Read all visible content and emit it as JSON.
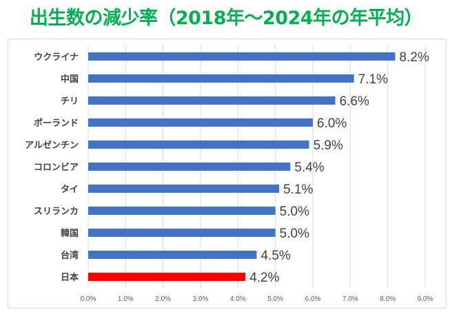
{
  "colors": {
    "title": "#00b050",
    "bar_default": "#4472c4",
    "bar_highlight": "#ff0000",
    "gridline": "#d9d9d9",
    "axis_text": "#595959"
  },
  "chart_data": {
    "type": "bar",
    "orientation": "horizontal",
    "title": "出生数の減少率（2018年～2024年の年平均）",
    "categories": [
      "ウクライナ",
      "中国",
      "チリ",
      "ポーランド",
      "アルゼンチン",
      "コロンビア",
      "タイ",
      "スリランカ",
      "韓国",
      "台湾",
      "日本"
    ],
    "values": [
      8.2,
      7.1,
      6.6,
      6.0,
      5.9,
      5.4,
      5.1,
      5.0,
      5.0,
      4.5,
      4.2
    ],
    "data_labels": [
      "8.2%",
      "7.1%",
      "6.6%",
      "6.0%",
      "5.9%",
      "5.4%",
      "5.1%",
      "5.0%",
      "5.0%",
      "4.5%",
      "4.2%"
    ],
    "highlight_category": "日本",
    "xlim": [
      0,
      9
    ],
    "x_ticks": [
      0,
      1,
      2,
      3,
      4,
      5,
      6,
      7,
      8,
      9
    ],
    "x_tick_labels": [
      "0.0%",
      "1.0%",
      "2.0%",
      "3.0%",
      "4.0%",
      "5.0%",
      "6.0%",
      "7.0%",
      "8.0%",
      "9.0%"
    ],
    "grid": true,
    "xlabel": "",
    "ylabel": ""
  }
}
